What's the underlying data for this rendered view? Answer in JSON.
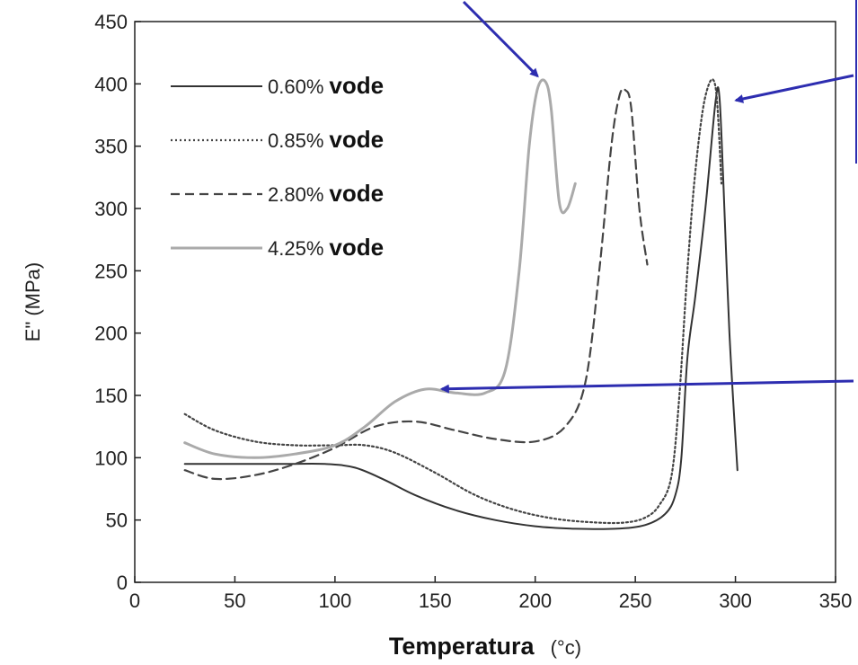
{
  "chart_data": {
    "type": "line",
    "title": "",
    "xlabel": "Temperatura",
    "xlabel_unit": "(°c)",
    "ylabel": "E\" (MPa)",
    "xlim": [
      0,
      350
    ],
    "ylim": [
      0,
      450
    ],
    "xticks": [
      0,
      50,
      100,
      150,
      200,
      250,
      300,
      350
    ],
    "yticks": [
      0,
      50,
      100,
      150,
      200,
      250,
      300,
      350,
      400,
      450
    ],
    "grid": false,
    "legend_position": "top-left",
    "series": [
      {
        "name": "0.60%",
        "name_suffix": "vode",
        "style": "solid",
        "color": "#333333",
        "x": [
          25,
          50,
          75,
          95,
          110,
          125,
          140,
          160,
          180,
          200,
          220,
          240,
          255,
          265,
          270,
          273,
          276,
          280,
          285,
          290,
          292,
          294,
          297,
          301
        ],
        "y": [
          95,
          95,
          95,
          95,
          92,
          82,
          70,
          58,
          50,
          45,
          43,
          43,
          46,
          55,
          70,
          100,
          180,
          230,
          300,
          385,
          390,
          320,
          200,
          90
        ]
      },
      {
        "name": "0.85%",
        "name_suffix": "vode",
        "style": "dotted",
        "color": "#444444",
        "x": [
          25,
          40,
          60,
          80,
          100,
          115,
          130,
          150,
          170,
          190,
          210,
          230,
          245,
          255,
          262,
          268,
          272,
          276,
          280,
          285,
          290,
          293
        ],
        "y": [
          135,
          122,
          113,
          110,
          110,
          110,
          104,
          88,
          70,
          58,
          51,
          48,
          48,
          52,
          62,
          85,
          150,
          250,
          330,
          390,
          398,
          320
        ]
      },
      {
        "name": "2.80%",
        "name_suffix": "vode",
        "style": "dashed",
        "color": "#444444",
        "x": [
          25,
          40,
          60,
          80,
          100,
          120,
          140,
          160,
          180,
          200,
          215,
          225,
          232,
          238,
          242,
          245,
          248,
          252,
          256
        ],
        "y": [
          90,
          83,
          86,
          95,
          108,
          125,
          129,
          122,
          115,
          113,
          125,
          160,
          250,
          350,
          390,
          395,
          380,
          300,
          255
        ]
      },
      {
        "name": "4.25%",
        "name_suffix": "vode",
        "style": "solid-light",
        "color": "#aaaaaa",
        "x": [
          25,
          40,
          60,
          80,
          100,
          115,
          130,
          145,
          160,
          175,
          185,
          192,
          197,
          201,
          205,
          208,
          212,
          216,
          220
        ],
        "y": [
          112,
          103,
          100,
          103,
          110,
          125,
          145,
          155,
          152,
          152,
          170,
          250,
          350,
          395,
          402,
          380,
          305,
          300,
          320
        ]
      }
    ],
    "annotations": [
      {
        "type": "arrow",
        "color": "#2d2db0",
        "target": [
          205,
          400
        ]
      },
      {
        "type": "arrow",
        "color": "#2d2db0",
        "target": [
          295,
          385
        ]
      },
      {
        "type": "arrow",
        "color": "#2d2db0",
        "target": [
          148,
          155
        ]
      }
    ]
  }
}
